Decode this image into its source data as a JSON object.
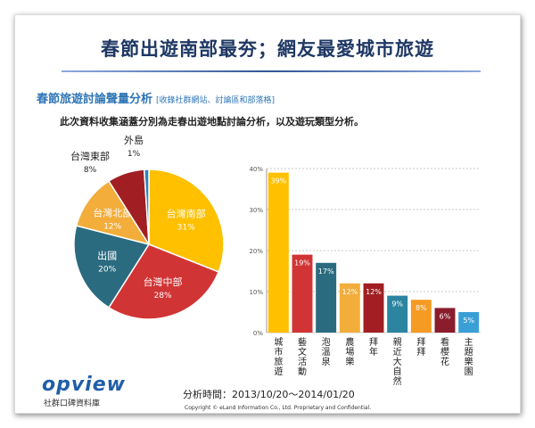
{
  "header": {
    "title": "春節出遊南部最夯；網友最愛城市旅遊",
    "subtitle": "春節旅遊討論聲量分析",
    "subtitle_note": "[收錄社群網站、討論區和部落格]",
    "description": "此次資料收集涵蓋分別為走春出遊地點討論分析，以及遊玩類型分析。"
  },
  "chart_data": [
    {
      "type": "pie",
      "title": "",
      "slices": [
        {
          "label": "台灣南部",
          "value": 31,
          "value_label": "31%",
          "color": "#ffc000"
        },
        {
          "label": "台灣中部",
          "value": 28,
          "value_label": "28%",
          "color": "#d13435"
        },
        {
          "label": "出國",
          "value": 20,
          "value_label": "20%",
          "color": "#2b6b80"
        },
        {
          "label": "台灣北部",
          "value": 12,
          "value_label": "12%",
          "color": "#f2ad3b"
        },
        {
          "label": "台灣東部",
          "value": 8,
          "value_label": "8%",
          "color": "#a11f22"
        },
        {
          "label": "外島",
          "value": 1,
          "value_label": "1%",
          "color": "#2a84b7"
        }
      ]
    },
    {
      "type": "bar",
      "title": "",
      "categories": [
        "城市旅遊",
        "藝文活動",
        "泡溫泉",
        "農場樂",
        "拜年",
        "親近大自然",
        "拜拜",
        "看櫻花",
        "主題樂園"
      ],
      "values": [
        39,
        19,
        17,
        12,
        12,
        9,
        8,
        6,
        5
      ],
      "value_labels": [
        "39%",
        "19%",
        "17%",
        "12%",
        "12%",
        "9%",
        "8%",
        "6%",
        "5%"
      ],
      "colors": [
        "#ffc000",
        "#d13435",
        "#2b6b80",
        "#f2ad3b",
        "#a11f22",
        "#2b84a0",
        "#f59a23",
        "#8b1c2c",
        "#3a9fd6"
      ],
      "ylim": [
        0,
        40
      ],
      "yticks": [
        0,
        10,
        20,
        30,
        40
      ],
      "ytick_labels": [
        "0%",
        "10%",
        "20%",
        "30%",
        "40%"
      ],
      "xlabel": "",
      "ylabel": ""
    }
  ],
  "footer": {
    "logo_text": "opview",
    "logo_subtext": "社群口碑資料庫",
    "period": "分析時間：2013/10/20～2014/01/20",
    "copyright": "Copyright © eLand Information Co., Ltd. Proprietary and Confidential."
  }
}
